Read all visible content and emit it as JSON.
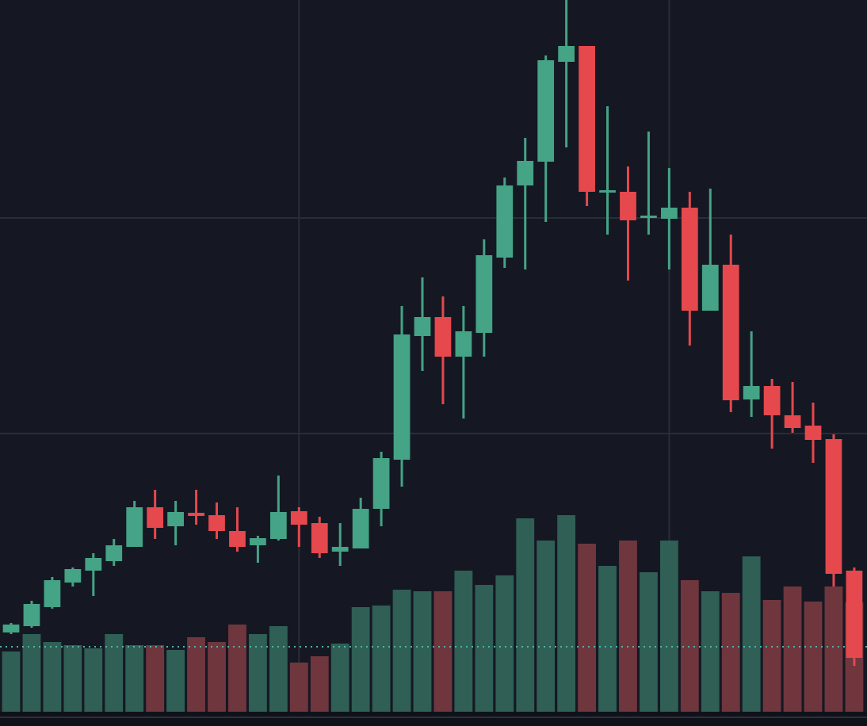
{
  "chart_data": {
    "type": "candlestick",
    "x": [
      0,
      1,
      2,
      3,
      4,
      5,
      6,
      7,
      8,
      9,
      10,
      11,
      12,
      13,
      14,
      15,
      16,
      17,
      18,
      19,
      20,
      21,
      22,
      23,
      24,
      25,
      26,
      27,
      28,
      29,
      30,
      31,
      32,
      33,
      34,
      35,
      36,
      37,
      38,
      39,
      40,
      41
    ],
    "open": [
      10.0,
      10.8,
      13.2,
      16.3,
      17.8,
      19.0,
      20.8,
      25.8,
      23.4,
      25.1,
      24.8,
      22.8,
      21.0,
      21.8,
      25.3,
      23.8,
      20.2,
      20.6,
      25.6,
      31.8,
      47.4,
      49.8,
      44.8,
      47.8,
      57.3,
      66.4,
      69.4,
      82.0,
      84.0,
      65.5,
      65.6,
      62.3,
      62.2,
      63.6,
      50.6,
      56.4,
      39.4,
      41.1,
      37.4,
      36.1,
      34.4,
      17.8
    ],
    "high": [
      11.2,
      14.0,
      17.0,
      18.2,
      20.0,
      21.8,
      26.6,
      28.0,
      26.6,
      28.0,
      26.4,
      25.8,
      22.2,
      29.8,
      25.8,
      24.6,
      23.8,
      27.0,
      32.8,
      51.2,
      54.8,
      52.4,
      51.2,
      59.6,
      67.4,
      72.4,
      82.8,
      89.8,
      84.0,
      76.4,
      68.8,
      73.2,
      68.6,
      65.6,
      66.0,
      60.2,
      48.0,
      42.0,
      41.6,
      39.0,
      35.0,
      18.2
    ],
    "low": [
      9.8,
      10.6,
      13.0,
      15.8,
      14.6,
      18.4,
      20.8,
      21.8,
      21.0,
      23.6,
      21.8,
      20.2,
      18.8,
      21.6,
      20.8,
      19.4,
      18.4,
      20.6,
      23.4,
      28.4,
      43.0,
      38.8,
      37.0,
      44.8,
      56.0,
      55.8,
      61.8,
      71.2,
      63.8,
      60.2,
      54.4,
      60.2,
      55.8,
      46.2,
      50.6,
      37.8,
      37.2,
      33.2,
      35.2,
      31.4,
      15.8,
      5.8
    ],
    "close": [
      11.0,
      13.6,
      16.6,
      18.0,
      19.4,
      21.0,
      25.8,
      23.2,
      25.2,
      24.7,
      22.8,
      20.8,
      21.9,
      25.2,
      23.6,
      20.0,
      20.8,
      25.6,
      32.0,
      47.6,
      49.8,
      44.8,
      48.0,
      57.6,
      66.4,
      69.5,
      82.2,
      84.0,
      65.6,
      65.8,
      62.0,
      62.6,
      63.6,
      50.6,
      56.4,
      39.3,
      41.1,
      37.4,
      35.8,
      34.3,
      17.4,
      6.8
    ],
    "volume": [
      7.6,
      9.8,
      8.8,
      8.4,
      8.0,
      9.8,
      8.4,
      8.4,
      7.8,
      9.4,
      8.8,
      11.0,
      9.8,
      10.8,
      6.2,
      7.0,
      8.6,
      13.2,
      13.4,
      15.4,
      15.2,
      15.2,
      17.8,
      16.0,
      17.2,
      24.4,
      21.6,
      24.8,
      21.2,
      18.4,
      21.6,
      17.6,
      21.6,
      16.6,
      15.2,
      15.0,
      19.6,
      14.1,
      15.8,
      13.9,
      15.8,
      13.8
    ],
    "up_color": "#45a386",
    "down_color": "#e5484d",
    "volume_up_color": "#2f5f55",
    "volume_down_color": "#6f363e",
    "reference_line": {
      "value": 8.2,
      "color": "#4fb3a6",
      "axis": "y2"
    },
    "xlim": [
      -0.54,
      41.62
    ],
    "xticks": [
      14,
      32
    ],
    "ylim": [
      0,
      89.8
    ],
    "yticks": [
      35.1,
      62.3
    ],
    "y2lim": [
      0,
      89.8
    ],
    "grid": true,
    "background": "#151823"
  }
}
